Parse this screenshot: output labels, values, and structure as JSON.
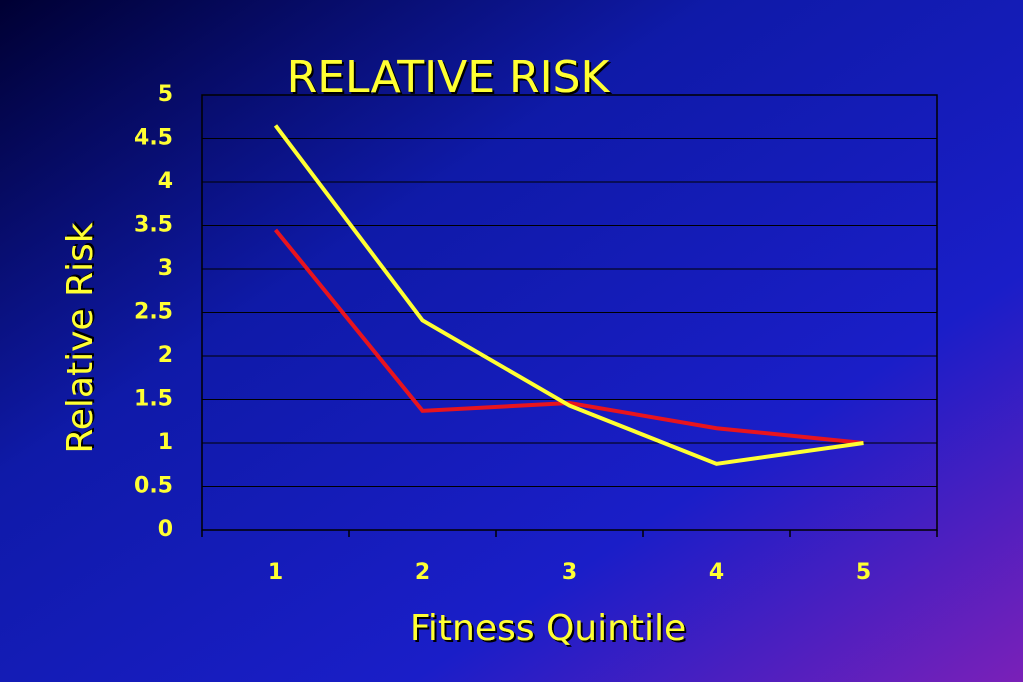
{
  "chart_data": {
    "type": "line",
    "title": "RELATIVE RISK",
    "x_label": "Fitness Quintile",
    "y_label": "Relative Risk",
    "categories": [
      "1",
      "2",
      "3",
      "4",
      "5"
    ],
    "series": [
      {
        "color": "#e8141e",
        "values": [
          3.45,
          1.37,
          1.46,
          1.17,
          1.0
        ]
      },
      {
        "color": "#ffff33",
        "values": [
          4.65,
          2.41,
          1.43,
          0.76,
          1.0
        ]
      }
    ],
    "ylim": [
      0,
      5
    ],
    "yticks": [
      0,
      0.5,
      1,
      1.5,
      2,
      2.5,
      3,
      3.5,
      4,
      4.5,
      5
    ],
    "grid": true
  }
}
